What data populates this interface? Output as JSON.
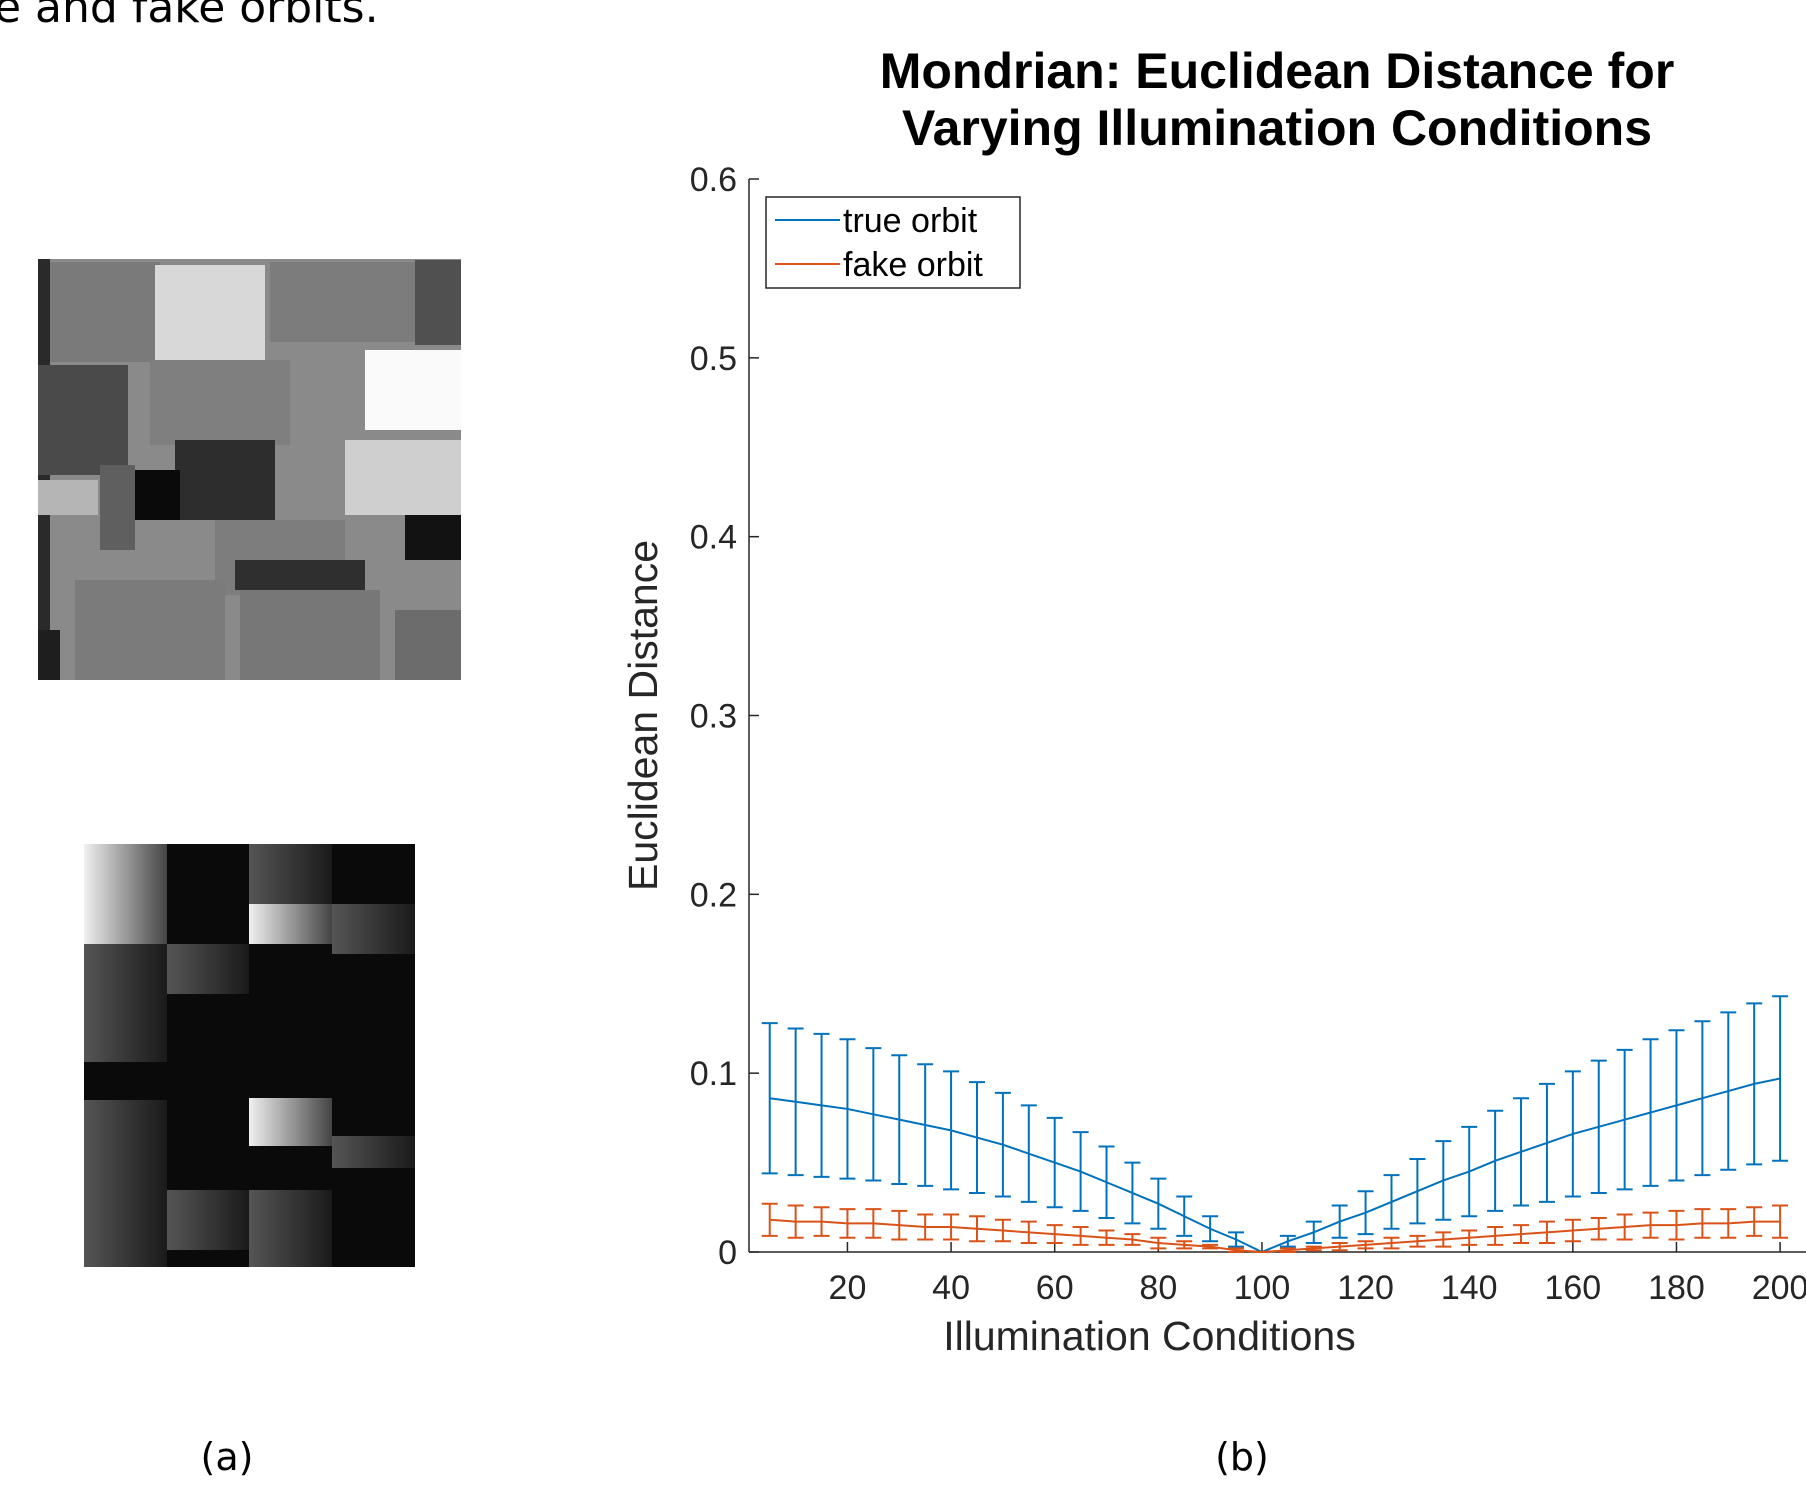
{
  "caption_text": "e and fake orbits.",
  "panel_labels": [
    "(a)",
    "(b)"
  ],
  "chart_data": {
    "type": "errorbar-line",
    "title": "Mondrian: Euclidean Distance for Varying Illumination Conditions",
    "x_label": "Illumination Conditions",
    "y_label": "Euclidean Distance",
    "x": [
      5,
      10,
      15,
      20,
      25,
      30,
      35,
      40,
      45,
      50,
      55,
      60,
      65,
      70,
      75,
      80,
      85,
      90,
      95,
      100,
      105,
      110,
      115,
      120,
      125,
      130,
      135,
      140,
      145,
      150,
      155,
      160,
      165,
      170,
      175,
      180,
      185,
      190,
      195,
      200
    ],
    "series": [
      {
        "name": "true orbit",
        "color": "#0072bd",
        "values": [
          0.086,
          0.084,
          0.082,
          0.08,
          0.077,
          0.074,
          0.071,
          0.068,
          0.064,
          0.06,
          0.055,
          0.05,
          0.045,
          0.039,
          0.033,
          0.027,
          0.02,
          0.013,
          0.007,
          0.0,
          0.006,
          0.011,
          0.017,
          0.022,
          0.028,
          0.034,
          0.04,
          0.045,
          0.051,
          0.056,
          0.061,
          0.066,
          0.07,
          0.074,
          0.078,
          0.082,
          0.086,
          0.09,
          0.094,
          0.097
        ],
        "errors": [
          0.042,
          0.041,
          0.04,
          0.039,
          0.037,
          0.036,
          0.034,
          0.033,
          0.031,
          0.029,
          0.027,
          0.025,
          0.022,
          0.02,
          0.017,
          0.014,
          0.011,
          0.007,
          0.004,
          0.0,
          0.003,
          0.006,
          0.009,
          0.012,
          0.015,
          0.018,
          0.022,
          0.025,
          0.028,
          0.03,
          0.033,
          0.035,
          0.037,
          0.039,
          0.041,
          0.042,
          0.043,
          0.044,
          0.045,
          0.046
        ]
      },
      {
        "name": "fake orbit",
        "color": "#d95319",
        "values": [
          0.018,
          0.017,
          0.017,
          0.016,
          0.016,
          0.015,
          0.014,
          0.014,
          0.013,
          0.012,
          0.011,
          0.01,
          0.009,
          0.008,
          0.007,
          0.005,
          0.004,
          0.003,
          0.001,
          0.0,
          0.001,
          0.002,
          0.003,
          0.004,
          0.005,
          0.006,
          0.007,
          0.008,
          0.009,
          0.01,
          0.011,
          0.012,
          0.013,
          0.014,
          0.015,
          0.015,
          0.016,
          0.016,
          0.017,
          0.017
        ],
        "errors": [
          0.009,
          0.009,
          0.008,
          0.008,
          0.008,
          0.008,
          0.007,
          0.007,
          0.007,
          0.006,
          0.006,
          0.005,
          0.005,
          0.004,
          0.003,
          0.003,
          0.002,
          0.001,
          0.001,
          0.0,
          0.001,
          0.001,
          0.002,
          0.002,
          0.003,
          0.003,
          0.004,
          0.004,
          0.005,
          0.005,
          0.006,
          0.006,
          0.006,
          0.007,
          0.007,
          0.008,
          0.008,
          0.008,
          0.008,
          0.009
        ]
      }
    ],
    "xlim": [
      1,
      205
    ],
    "ylim": [
      0,
      0.6
    ],
    "xticks": [
      20,
      40,
      60,
      80,
      100,
      120,
      140,
      160,
      180,
      200
    ],
    "yticks": [
      0,
      0.1,
      0.2,
      0.3,
      0.4,
      0.5,
      0.6
    ],
    "legend": "upper left",
    "grid": false
  }
}
